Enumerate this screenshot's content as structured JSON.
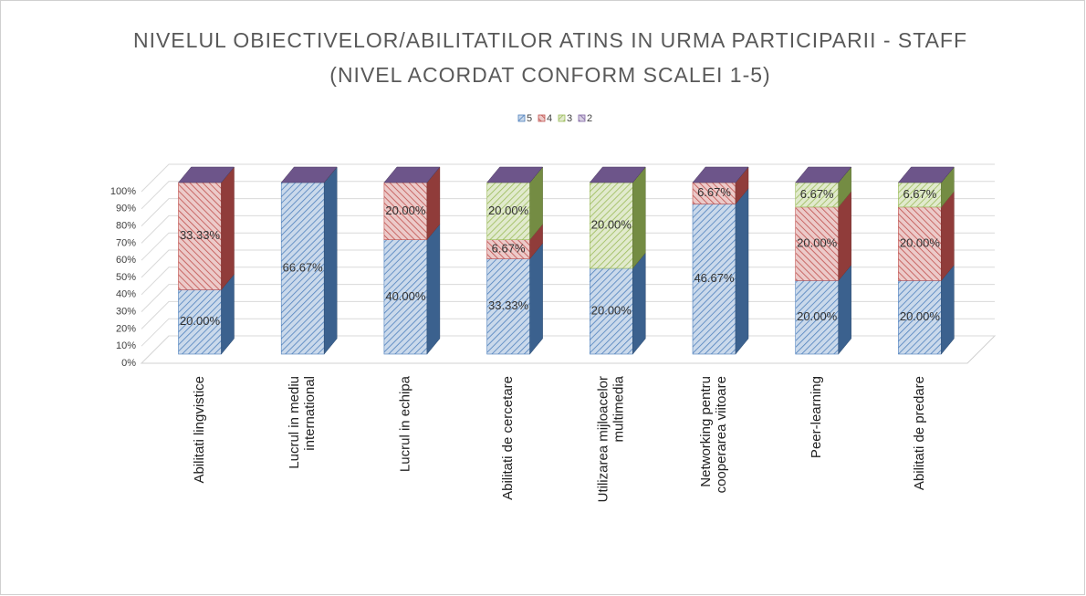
{
  "chart_data": {
    "type": "bar3d",
    "stacking": "percent",
    "title": [
      "NIVELUL OBIECTIVELOR/ABILITATILOR ATINS IN URMA PARTICIPARII - STAFF",
      "(NIVEL ACORDAT CONFORM SCALEI 1-5)"
    ],
    "categories": [
      "Abilitati lingvistice",
      "Lucrul in mediu international",
      "Lucrul in echipa",
      "Abilitati de cercetare",
      "Utilizarea mijloacelor multimedia",
      "Networking pentru cooperarea viitoare",
      "Peer-learning",
      "Abilitati de predare"
    ],
    "series": [
      {
        "name": "5",
        "color": "#4f81bd",
        "values": [
          20,
          66.67,
          40,
          33.33,
          20,
          46.67,
          20,
          20
        ],
        "value_labels": [
          "20.00%",
          "66.67%",
          "40.00%",
          "33.33%",
          "20.00%",
          "46.67%",
          "20.00%",
          "20.00%"
        ]
      },
      {
        "name": "4",
        "color": "#c0504d",
        "values": [
          33.33,
          0,
          20,
          6.67,
          0,
          6.67,
          20,
          20
        ],
        "value_labels": [
          "33.33%",
          null,
          "20.00%",
          "6.67%",
          null,
          "6.67%",
          "20.00%",
          "20.00%"
        ]
      },
      {
        "name": "3",
        "color": "#9bbb59",
        "values": [
          0,
          0,
          0,
          20,
          20,
          0,
          6.67,
          6.67
        ],
        "value_labels": [
          null,
          null,
          null,
          "20.00%",
          "20.00%",
          null,
          "6.67%",
          "6.67%"
        ]
      },
      {
        "name": "2",
        "color": "#8064a2",
        "values": [
          0,
          0,
          0,
          0,
          0,
          0,
          0,
          0
        ],
        "value_labels": [
          null,
          null,
          null,
          null,
          null,
          null,
          null,
          null
        ]
      }
    ],
    "ylim": [
      0,
      100
    ],
    "yticks": [
      {
        "value": 0,
        "label": "0%"
      },
      {
        "value": 10,
        "label": "10%"
      },
      {
        "value": 20,
        "label": "20%"
      },
      {
        "value": 30,
        "label": "30%"
      },
      {
        "value": 40,
        "label": "40%"
      },
      {
        "value": 50,
        "label": "50%"
      },
      {
        "value": 60,
        "label": "60%"
      },
      {
        "value": 70,
        "label": "70%"
      },
      {
        "value": 80,
        "label": "80%"
      },
      {
        "value": 90,
        "label": "90%"
      },
      {
        "value": 100,
        "label": "100%"
      }
    ],
    "grid": true,
    "legend": "top"
  }
}
